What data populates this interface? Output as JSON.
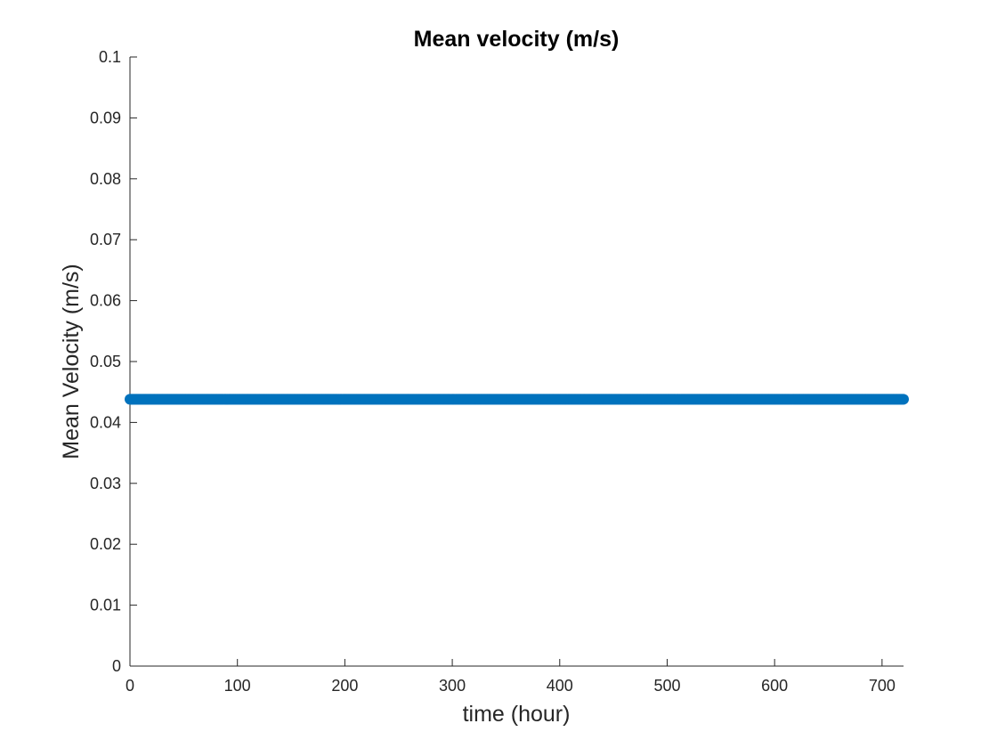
{
  "chart_data": {
    "type": "scatter",
    "title": "Mean velocity (m/s)",
    "xlabel": "time (hour)",
    "ylabel": "Mean Velocity (m/s)",
    "xlim": [
      0,
      720
    ],
    "ylim": [
      0,
      0.1
    ],
    "xticks": [
      0,
      100,
      200,
      300,
      400,
      500,
      600,
      700
    ],
    "xtick_labels": [
      "0",
      "100",
      "200",
      "300",
      "400",
      "500",
      "600",
      "700"
    ],
    "yticks": [
      0,
      0.01,
      0.02,
      0.03,
      0.04,
      0.05,
      0.06,
      0.07,
      0.08,
      0.09,
      0.1
    ],
    "ytick_labels": [
      "0",
      "0.01",
      "0.02",
      "0.03",
      "0.04",
      "0.05",
      "0.06",
      "0.07",
      "0.08",
      "0.09",
      "0.1"
    ],
    "grid": false,
    "series": [
      {
        "color": "#0072BD",
        "marker": "circle-filled",
        "x_start": 0,
        "x_end": 720,
        "x_step": 1,
        "y_constant": 0.0438
      }
    ]
  }
}
